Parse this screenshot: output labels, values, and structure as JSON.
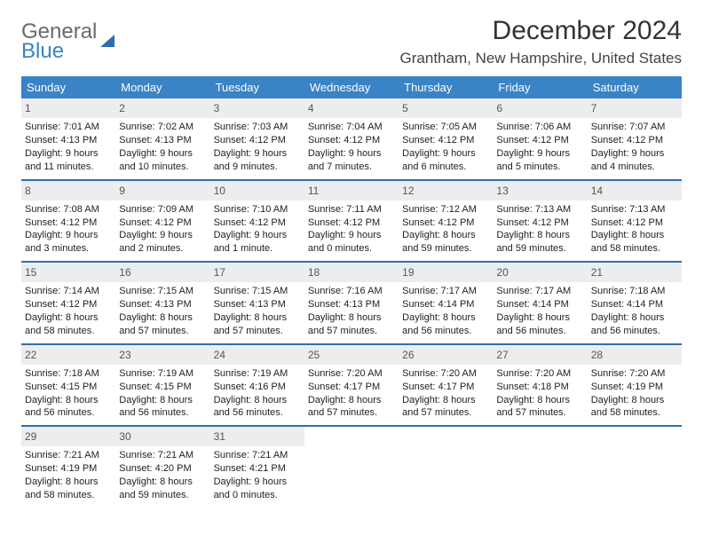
{
  "logo": {
    "line1": "General",
    "line2": "Blue",
    "icon_color": "#2f6ea8"
  },
  "title": "December 2024",
  "location": "Grantham, New Hampshire, United States",
  "header_bg": "#3a83c5",
  "divider_color": "#2f6ea8",
  "daynum_bg": "#ecedef",
  "day_names": [
    "Sunday",
    "Monday",
    "Tuesday",
    "Wednesday",
    "Thursday",
    "Friday",
    "Saturday"
  ],
  "weeks": [
    [
      {
        "n": "1",
        "sr": "Sunrise: 7:01 AM",
        "ss": "Sunset: 4:13 PM",
        "d1": "Daylight: 9 hours",
        "d2": "and 11 minutes."
      },
      {
        "n": "2",
        "sr": "Sunrise: 7:02 AM",
        "ss": "Sunset: 4:13 PM",
        "d1": "Daylight: 9 hours",
        "d2": "and 10 minutes."
      },
      {
        "n": "3",
        "sr": "Sunrise: 7:03 AM",
        "ss": "Sunset: 4:12 PM",
        "d1": "Daylight: 9 hours",
        "d2": "and 9 minutes."
      },
      {
        "n": "4",
        "sr": "Sunrise: 7:04 AM",
        "ss": "Sunset: 4:12 PM",
        "d1": "Daylight: 9 hours",
        "d2": "and 7 minutes."
      },
      {
        "n": "5",
        "sr": "Sunrise: 7:05 AM",
        "ss": "Sunset: 4:12 PM",
        "d1": "Daylight: 9 hours",
        "d2": "and 6 minutes."
      },
      {
        "n": "6",
        "sr": "Sunrise: 7:06 AM",
        "ss": "Sunset: 4:12 PM",
        "d1": "Daylight: 9 hours",
        "d2": "and 5 minutes."
      },
      {
        "n": "7",
        "sr": "Sunrise: 7:07 AM",
        "ss": "Sunset: 4:12 PM",
        "d1": "Daylight: 9 hours",
        "d2": "and 4 minutes."
      }
    ],
    [
      {
        "n": "8",
        "sr": "Sunrise: 7:08 AM",
        "ss": "Sunset: 4:12 PM",
        "d1": "Daylight: 9 hours",
        "d2": "and 3 minutes."
      },
      {
        "n": "9",
        "sr": "Sunrise: 7:09 AM",
        "ss": "Sunset: 4:12 PM",
        "d1": "Daylight: 9 hours",
        "d2": "and 2 minutes."
      },
      {
        "n": "10",
        "sr": "Sunrise: 7:10 AM",
        "ss": "Sunset: 4:12 PM",
        "d1": "Daylight: 9 hours",
        "d2": "and 1 minute."
      },
      {
        "n": "11",
        "sr": "Sunrise: 7:11 AM",
        "ss": "Sunset: 4:12 PM",
        "d1": "Daylight: 9 hours",
        "d2": "and 0 minutes."
      },
      {
        "n": "12",
        "sr": "Sunrise: 7:12 AM",
        "ss": "Sunset: 4:12 PM",
        "d1": "Daylight: 8 hours",
        "d2": "and 59 minutes."
      },
      {
        "n": "13",
        "sr": "Sunrise: 7:13 AM",
        "ss": "Sunset: 4:12 PM",
        "d1": "Daylight: 8 hours",
        "d2": "and 59 minutes."
      },
      {
        "n": "14",
        "sr": "Sunrise: 7:13 AM",
        "ss": "Sunset: 4:12 PM",
        "d1": "Daylight: 8 hours",
        "d2": "and 58 minutes."
      }
    ],
    [
      {
        "n": "15",
        "sr": "Sunrise: 7:14 AM",
        "ss": "Sunset: 4:12 PM",
        "d1": "Daylight: 8 hours",
        "d2": "and 58 minutes."
      },
      {
        "n": "16",
        "sr": "Sunrise: 7:15 AM",
        "ss": "Sunset: 4:13 PM",
        "d1": "Daylight: 8 hours",
        "d2": "and 57 minutes."
      },
      {
        "n": "17",
        "sr": "Sunrise: 7:15 AM",
        "ss": "Sunset: 4:13 PM",
        "d1": "Daylight: 8 hours",
        "d2": "and 57 minutes."
      },
      {
        "n": "18",
        "sr": "Sunrise: 7:16 AM",
        "ss": "Sunset: 4:13 PM",
        "d1": "Daylight: 8 hours",
        "d2": "and 57 minutes."
      },
      {
        "n": "19",
        "sr": "Sunrise: 7:17 AM",
        "ss": "Sunset: 4:14 PM",
        "d1": "Daylight: 8 hours",
        "d2": "and 56 minutes."
      },
      {
        "n": "20",
        "sr": "Sunrise: 7:17 AM",
        "ss": "Sunset: 4:14 PM",
        "d1": "Daylight: 8 hours",
        "d2": "and 56 minutes."
      },
      {
        "n": "21",
        "sr": "Sunrise: 7:18 AM",
        "ss": "Sunset: 4:14 PM",
        "d1": "Daylight: 8 hours",
        "d2": "and 56 minutes."
      }
    ],
    [
      {
        "n": "22",
        "sr": "Sunrise: 7:18 AM",
        "ss": "Sunset: 4:15 PM",
        "d1": "Daylight: 8 hours",
        "d2": "and 56 minutes."
      },
      {
        "n": "23",
        "sr": "Sunrise: 7:19 AM",
        "ss": "Sunset: 4:15 PM",
        "d1": "Daylight: 8 hours",
        "d2": "and 56 minutes."
      },
      {
        "n": "24",
        "sr": "Sunrise: 7:19 AM",
        "ss": "Sunset: 4:16 PM",
        "d1": "Daylight: 8 hours",
        "d2": "and 56 minutes."
      },
      {
        "n": "25",
        "sr": "Sunrise: 7:20 AM",
        "ss": "Sunset: 4:17 PM",
        "d1": "Daylight: 8 hours",
        "d2": "and 57 minutes."
      },
      {
        "n": "26",
        "sr": "Sunrise: 7:20 AM",
        "ss": "Sunset: 4:17 PM",
        "d1": "Daylight: 8 hours",
        "d2": "and 57 minutes."
      },
      {
        "n": "27",
        "sr": "Sunrise: 7:20 AM",
        "ss": "Sunset: 4:18 PM",
        "d1": "Daylight: 8 hours",
        "d2": "and 57 minutes."
      },
      {
        "n": "28",
        "sr": "Sunrise: 7:20 AM",
        "ss": "Sunset: 4:19 PM",
        "d1": "Daylight: 8 hours",
        "d2": "and 58 minutes."
      }
    ],
    [
      {
        "n": "29",
        "sr": "Sunrise: 7:21 AM",
        "ss": "Sunset: 4:19 PM",
        "d1": "Daylight: 8 hours",
        "d2": "and 58 minutes."
      },
      {
        "n": "30",
        "sr": "Sunrise: 7:21 AM",
        "ss": "Sunset: 4:20 PM",
        "d1": "Daylight: 8 hours",
        "d2": "and 59 minutes."
      },
      {
        "n": "31",
        "sr": "Sunrise: 7:21 AM",
        "ss": "Sunset: 4:21 PM",
        "d1": "Daylight: 9 hours",
        "d2": "and 0 minutes."
      },
      {
        "empty": true
      },
      {
        "empty": true
      },
      {
        "empty": true
      },
      {
        "empty": true
      }
    ]
  ]
}
